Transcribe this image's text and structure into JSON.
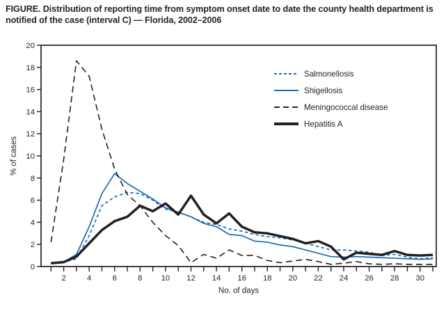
{
  "figure": {
    "title": "FIGURE. Distribution of reporting time from symptom onset date to date the county health department is notified of the case (interval C) — Florida, 2002–2006"
  },
  "chart_data": {
    "type": "line",
    "x": [
      1,
      2,
      3,
      4,
      5,
      6,
      7,
      8,
      9,
      10,
      11,
      12,
      13,
      14,
      15,
      16,
      17,
      18,
      19,
      20,
      21,
      22,
      23,
      24,
      25,
      26,
      27,
      28,
      29,
      30,
      31
    ],
    "xlabel": "No. of days",
    "ylabel": "% of cases",
    "ylim": [
      0,
      20
    ],
    "xlim": [
      1,
      31
    ],
    "y_ticks": [
      0,
      2,
      4,
      6,
      8,
      10,
      12,
      14,
      16,
      18,
      20
    ],
    "x_tick_labels": [
      2,
      4,
      6,
      8,
      10,
      12,
      14,
      16,
      18,
      20,
      22,
      24,
      26,
      28,
      30
    ],
    "grid": false,
    "legend_position": "inside upper right",
    "frame_color": "#231f20",
    "series": [
      {
        "name": "Salmonellosis",
        "color": "#1b6bb5",
        "style": "dashed-short",
        "width": 1.7,
        "values": [
          0.3,
          0.4,
          0.7,
          2.8,
          5.5,
          6.3,
          6.7,
          6.6,
          6.0,
          5.2,
          4.9,
          4.5,
          4.0,
          3.8,
          3.4,
          3.2,
          2.9,
          2.7,
          2.6,
          2.4,
          2.1,
          1.8,
          1.5,
          1.5,
          1.4,
          1.3,
          1.0,
          1.1,
          0.85,
          0.7,
          0.8
        ]
      },
      {
        "name": "Shigellosis",
        "color": "#1b6bb5",
        "style": "solid",
        "width": 1.7,
        "values": [
          0.3,
          0.4,
          1.1,
          3.6,
          6.6,
          8.4,
          7.5,
          6.8,
          6.1,
          5.3,
          4.9,
          4.5,
          3.9,
          3.6,
          2.9,
          2.8,
          2.3,
          2.2,
          1.95,
          1.8,
          1.5,
          1.2,
          0.9,
          0.85,
          0.9,
          0.85,
          0.8,
          0.75,
          0.7,
          0.65,
          0.7
        ]
      },
      {
        "name": "Meningococcal disease",
        "color": "#231f20",
        "style": "dashed-long",
        "width": 1.6,
        "values": [
          2.2,
          9.7,
          18.6,
          17.2,
          12.4,
          8.8,
          6.5,
          5.5,
          4.0,
          2.8,
          1.9,
          0.35,
          1.1,
          0.75,
          1.5,
          1.0,
          1.0,
          0.55,
          0.35,
          0.5,
          0.65,
          0.45,
          0.2,
          0.3,
          0.45,
          0.25,
          0.2,
          0.25,
          0.2,
          0.2,
          0.2
        ]
      },
      {
        "name": "Hepatitis A",
        "color": "#231f20",
        "style": "solid",
        "width": 3.5,
        "values": [
          0.3,
          0.4,
          0.9,
          2.1,
          3.3,
          4.1,
          4.5,
          5.5,
          5.0,
          5.7,
          4.7,
          6.4,
          4.7,
          3.9,
          4.8,
          3.6,
          3.1,
          3.0,
          2.75,
          2.5,
          2.1,
          2.3,
          1.8,
          0.65,
          1.25,
          1.15,
          1.05,
          1.4,
          1.05,
          1.0,
          1.05
        ]
      }
    ]
  }
}
